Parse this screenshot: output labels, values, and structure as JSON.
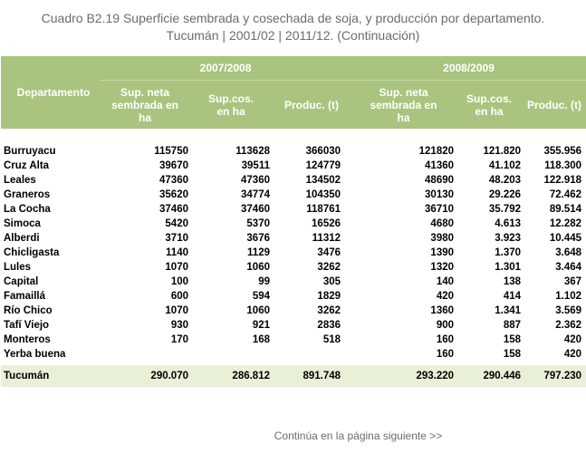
{
  "caption": {
    "line1": "Cuadro B2.19 Superficie sembrada y cosechada de soja, y producción por departamento.",
    "line2": "Tucumán | 2001/02 | 2011/12. (Continuación)"
  },
  "header": {
    "dept": "Departamento",
    "group1": "2007/2008",
    "group2": "2008/2009",
    "cols": [
      "Sup. neta sembrada en ha",
      "Sup.cos. en ha",
      "Produc. (t)",
      "Sup. neta sembrada en ha",
      "Sup.cos. en ha",
      "Produc. (t)"
    ]
  },
  "rows": [
    [
      "Burruyacu",
      "115750",
      "113628",
      "366030",
      "121820",
      "121.820",
      "355.956"
    ],
    [
      "Cruz Alta",
      "39670",
      "39511",
      "124779",
      "41360",
      "41.102",
      "118.300"
    ],
    [
      "Leales",
      "47360",
      "47360",
      "134502",
      "48690",
      "48.203",
      "122.918"
    ],
    [
      "Graneros",
      "35620",
      "34774",
      "104350",
      "30130",
      "29.226",
      "72.462"
    ],
    [
      "La Cocha",
      "37460",
      "37460",
      "118761",
      "36710",
      "35.792",
      "89.514"
    ],
    [
      "Simoca",
      "5420",
      "5370",
      "16526",
      "4680",
      "4.613",
      "12.282"
    ],
    [
      "Alberdi",
      "3710",
      "3676",
      "11312",
      "3980",
      "3.923",
      "10.445"
    ],
    [
      "Chicligasta",
      "1140",
      "1129",
      "3476",
      "1390",
      "1.370",
      "3.648"
    ],
    [
      "Lules",
      "1070",
      "1060",
      "3262",
      "1320",
      "1.301",
      "3.464"
    ],
    [
      "Capital",
      "100",
      "99",
      "305",
      "140",
      "138",
      "367"
    ],
    [
      "Famaillá",
      "600",
      "594",
      "1829",
      "420",
      "414",
      "1.102"
    ],
    [
      "Río Chico",
      "1070",
      "1060",
      "3262",
      "1360",
      "1.341",
      "3.569"
    ],
    [
      "Tafí Viejo",
      "930",
      "921",
      "2836",
      "900",
      "887",
      "2.362"
    ],
    [
      "Monteros",
      "170",
      "168",
      "518",
      "160",
      "158",
      "420"
    ],
    [
      "Yerba buena",
      "",
      "",
      "",
      "160",
      "158",
      "420"
    ]
  ],
  "total": [
    "Tucumán",
    "290.070",
    "286.812",
    "891.748",
    "293.220",
    "290.446",
    "797.230"
  ],
  "footer": {
    "link": "Continúa en la página siguiente >>"
  }
}
